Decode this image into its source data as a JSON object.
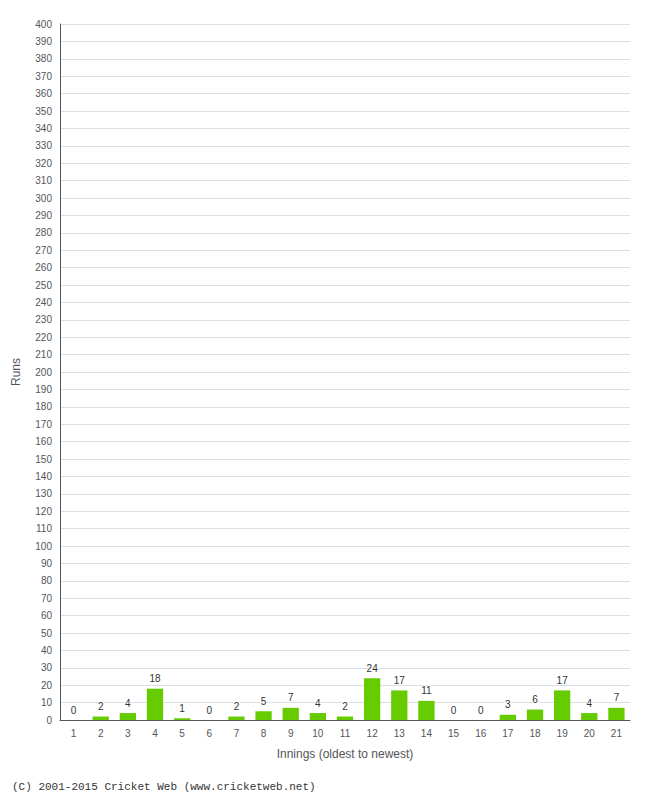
{
  "chart_data": {
    "type": "bar",
    "xlabel": "Innings (oldest to newest)",
    "ylabel": "Runs",
    "categories": [
      "1",
      "2",
      "3",
      "4",
      "5",
      "6",
      "7",
      "8",
      "9",
      "10",
      "11",
      "12",
      "13",
      "14",
      "15",
      "16",
      "17",
      "18",
      "19",
      "20",
      "21"
    ],
    "values": [
      0,
      2,
      4,
      18,
      1,
      0,
      2,
      5,
      7,
      4,
      2,
      24,
      17,
      11,
      0,
      0,
      3,
      6,
      17,
      4,
      7
    ],
    "color": "#66cc00",
    "ylim": [
      0,
      400
    ],
    "yticks": [
      0,
      10,
      20,
      30,
      40,
      50,
      60,
      70,
      80,
      90,
      100,
      110,
      120,
      130,
      140,
      150,
      160,
      170,
      180,
      190,
      200,
      210,
      220,
      230,
      240,
      250,
      260,
      270,
      280,
      290,
      300,
      310,
      320,
      330,
      340,
      350,
      360,
      370,
      380,
      390,
      400
    ],
    "grid": true,
    "data_labels": true,
    "annotations": [
      "(C) 2001-2015 Cricket Web (www.cricketweb.net)"
    ]
  }
}
